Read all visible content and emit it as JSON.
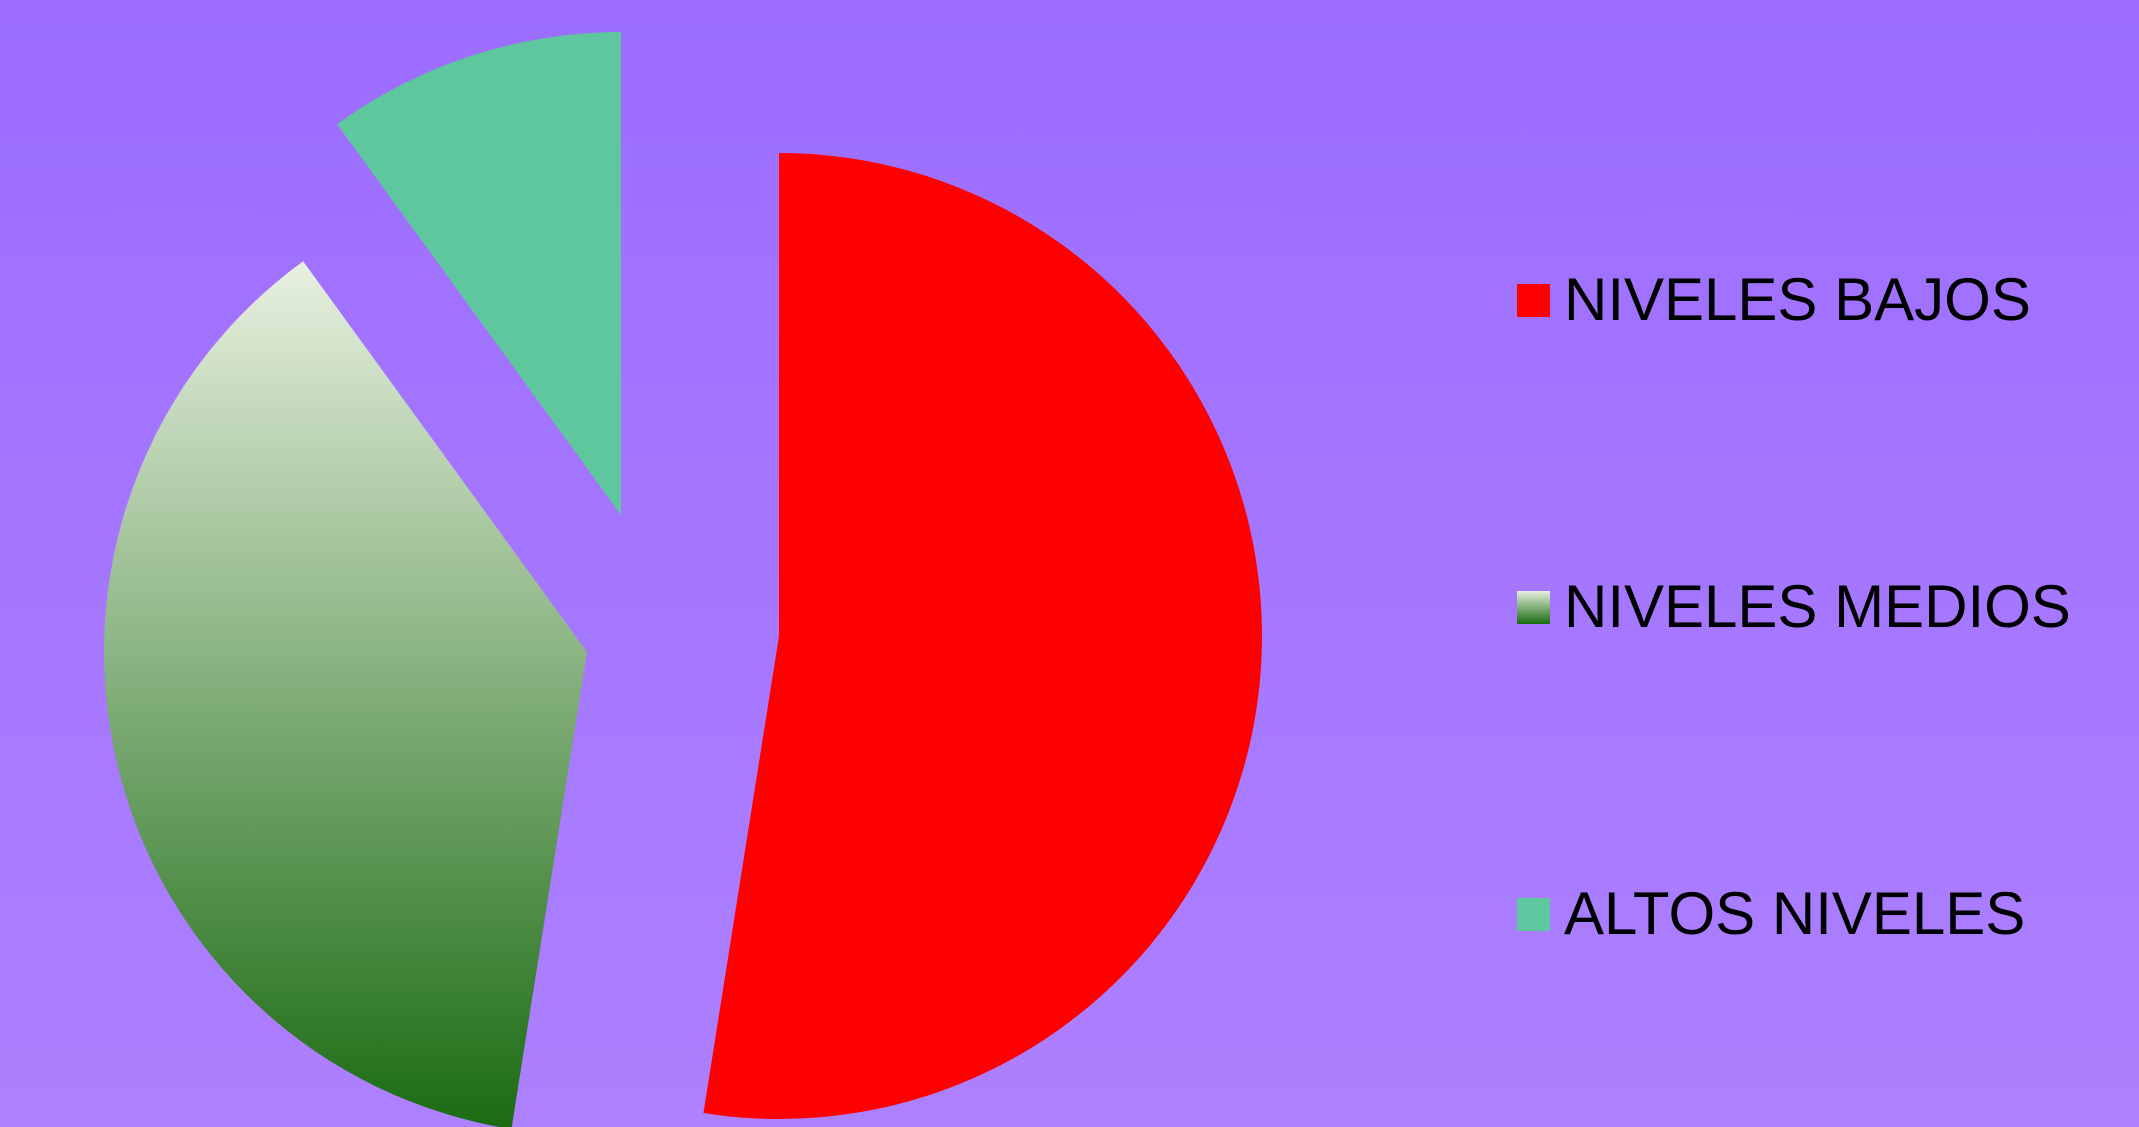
{
  "chart_data": {
    "type": "pie",
    "title": "",
    "exploded": true,
    "slices": [
      {
        "label": "NIVELES BAJOS",
        "value": 52.5,
        "color": "#ff0000",
        "fill": "solid"
      },
      {
        "label": "NIVELES MEDIOS",
        "value": 37.5,
        "color": "#1a6b12",
        "fill": "gradient",
        "gradient": [
          "#e8f0e0",
          "#1a6b12"
        ]
      },
      {
        "label": "ALTOS NIVELES",
        "value": 10.0,
        "color": "#5fc79e",
        "fill": "solid"
      }
    ],
    "legend": {
      "placement": "right"
    }
  },
  "background": {
    "top": "#9c6dff",
    "bottom": "#ad80ff"
  }
}
